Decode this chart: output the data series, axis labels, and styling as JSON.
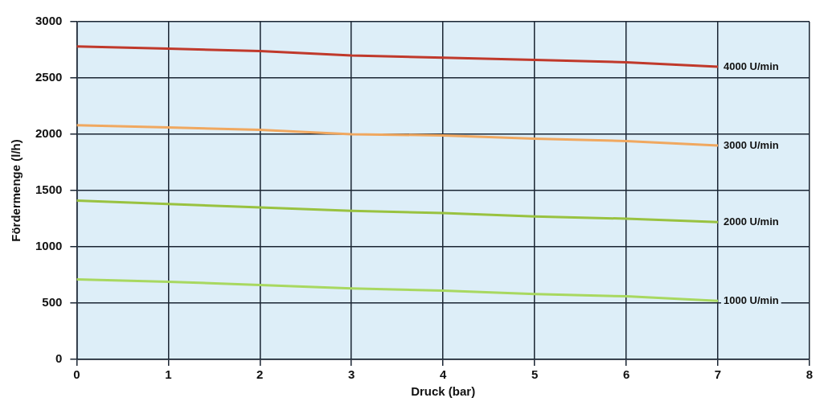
{
  "chart_data": {
    "type": "line",
    "xlabel": "Druck (bar)",
    "ylabel": "Fördermenge (l/h)",
    "x": [
      0,
      1,
      2,
      3,
      4,
      5,
      6,
      7
    ],
    "series": [
      {
        "name": "4000 U/min",
        "color": "#c0392b",
        "values": [
          2780,
          2760,
          2740,
          2700,
          2680,
          2660,
          2640,
          2600
        ]
      },
      {
        "name": "3000 U/min",
        "color": "#f0a860",
        "values": [
          2080,
          2060,
          2040,
          2000,
          1990,
          1960,
          1940,
          1900
        ]
      },
      {
        "name": "2000 U/min",
        "color": "#99c240",
        "values": [
          1410,
          1380,
          1350,
          1320,
          1300,
          1270,
          1250,
          1220
        ]
      },
      {
        "name": "1000 U/min",
        "color": "#a8d860",
        "values": [
          710,
          690,
          660,
          630,
          610,
          580,
          560,
          520
        ]
      }
    ],
    "xlim": [
      0,
      8
    ],
    "xticks": [
      0,
      1,
      2,
      3,
      4,
      5,
      6,
      7,
      8
    ],
    "ylim": [
      0,
      3000
    ],
    "yticks": [
      0,
      500,
      1000,
      1500,
      2000,
      2500,
      3000
    ],
    "grid": true,
    "legend": false,
    "marker": "none",
    "line_style": "solid"
  }
}
